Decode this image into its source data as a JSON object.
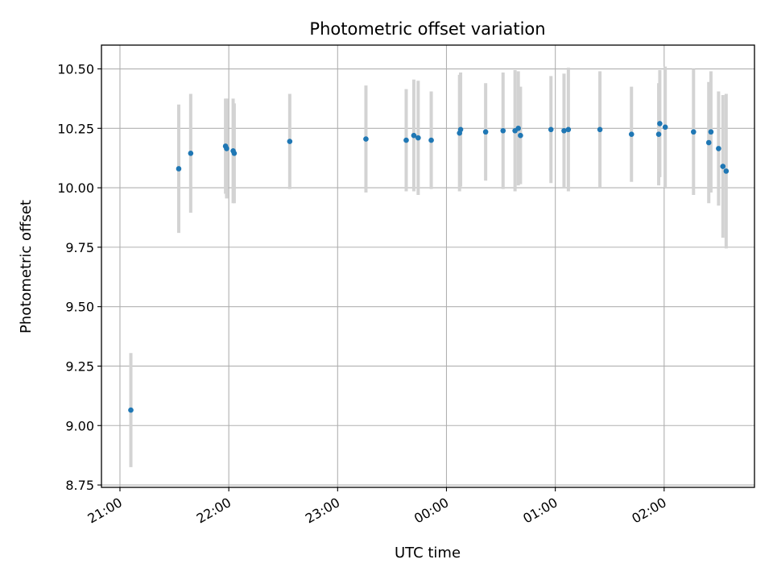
{
  "chart_data": {
    "type": "scatter",
    "title": "Photometric offset variation",
    "xlabel": "UTC time",
    "ylabel": "Photometric offset",
    "x_unit": "UTC time (hours)",
    "xlim": [
      20.83,
      26.83
    ],
    "ylim": [
      8.74,
      10.6
    ],
    "grid": true,
    "marker_color": "#1f77b4",
    "errorbar_color": "#d3d3d3",
    "x_ticks": [
      {
        "value": 21,
        "label": "21:00"
      },
      {
        "value": 22,
        "label": "22:00"
      },
      {
        "value": 23,
        "label": "23:00"
      },
      {
        "value": 24,
        "label": "00:00"
      },
      {
        "value": 25,
        "label": "01:00"
      },
      {
        "value": 26,
        "label": "02:00"
      }
    ],
    "y_ticks": [
      {
        "value": 8.75,
        "label": "8.75"
      },
      {
        "value": 9.0,
        "label": "9.00"
      },
      {
        "value": 9.25,
        "label": "9.25"
      },
      {
        "value": 9.5,
        "label": "9.50"
      },
      {
        "value": 9.75,
        "label": "9.75"
      },
      {
        "value": 10.0,
        "label": "10.00"
      },
      {
        "value": 10.25,
        "label": "10.25"
      },
      {
        "value": 10.5,
        "label": "10.50"
      }
    ],
    "points": [
      {
        "x": 21.1,
        "y": 9.065,
        "err": 0.24
      },
      {
        "x": 21.54,
        "y": 10.08,
        "err": 0.27
      },
      {
        "x": 21.65,
        "y": 10.145,
        "err": 0.25
      },
      {
        "x": 21.97,
        "y": 10.175,
        "err": 0.2
      },
      {
        "x": 21.98,
        "y": 10.165,
        "err": 0.21
      },
      {
        "x": 22.04,
        "y": 10.155,
        "err": 0.22
      },
      {
        "x": 22.05,
        "y": 10.145,
        "err": 0.21
      },
      {
        "x": 22.56,
        "y": 10.195,
        "err": 0.2
      },
      {
        "x": 23.26,
        "y": 10.205,
        "err": 0.225
      },
      {
        "x": 23.63,
        "y": 10.2,
        "err": 0.215
      },
      {
        "x": 23.7,
        "y": 10.22,
        "err": 0.235
      },
      {
        "x": 23.74,
        "y": 10.21,
        "err": 0.24
      },
      {
        "x": 23.86,
        "y": 10.2,
        "err": 0.205
      },
      {
        "x": 24.12,
        "y": 10.23,
        "err": 0.245
      },
      {
        "x": 24.13,
        "y": 10.245,
        "err": 0.24
      },
      {
        "x": 24.36,
        "y": 10.235,
        "err": 0.205
      },
      {
        "x": 24.52,
        "y": 10.24,
        "err": 0.245
      },
      {
        "x": 24.63,
        "y": 10.24,
        "err": 0.255
      },
      {
        "x": 24.66,
        "y": 10.25,
        "err": 0.24
      },
      {
        "x": 24.68,
        "y": 10.22,
        "err": 0.205
      },
      {
        "x": 24.96,
        "y": 10.245,
        "err": 0.225
      },
      {
        "x": 25.08,
        "y": 10.24,
        "err": 0.24
      },
      {
        "x": 25.12,
        "y": 10.245,
        "err": 0.26
      },
      {
        "x": 25.41,
        "y": 10.245,
        "err": 0.245
      },
      {
        "x": 25.7,
        "y": 10.225,
        "err": 0.2
      },
      {
        "x": 25.95,
        "y": 10.225,
        "err": 0.215
      },
      {
        "x": 25.96,
        "y": 10.27,
        "err": 0.225
      },
      {
        "x": 26.01,
        "y": 10.255,
        "err": 0.255
      },
      {
        "x": 26.27,
        "y": 10.235,
        "err": 0.265
      },
      {
        "x": 26.41,
        "y": 10.19,
        "err": 0.255
      },
      {
        "x": 26.43,
        "y": 10.235,
        "err": 0.255
      },
      {
        "x": 26.5,
        "y": 10.165,
        "err": 0.24
      },
      {
        "x": 26.54,
        "y": 10.09,
        "err": 0.3
      },
      {
        "x": 26.57,
        "y": 10.07,
        "err": 0.325
      }
    ]
  }
}
